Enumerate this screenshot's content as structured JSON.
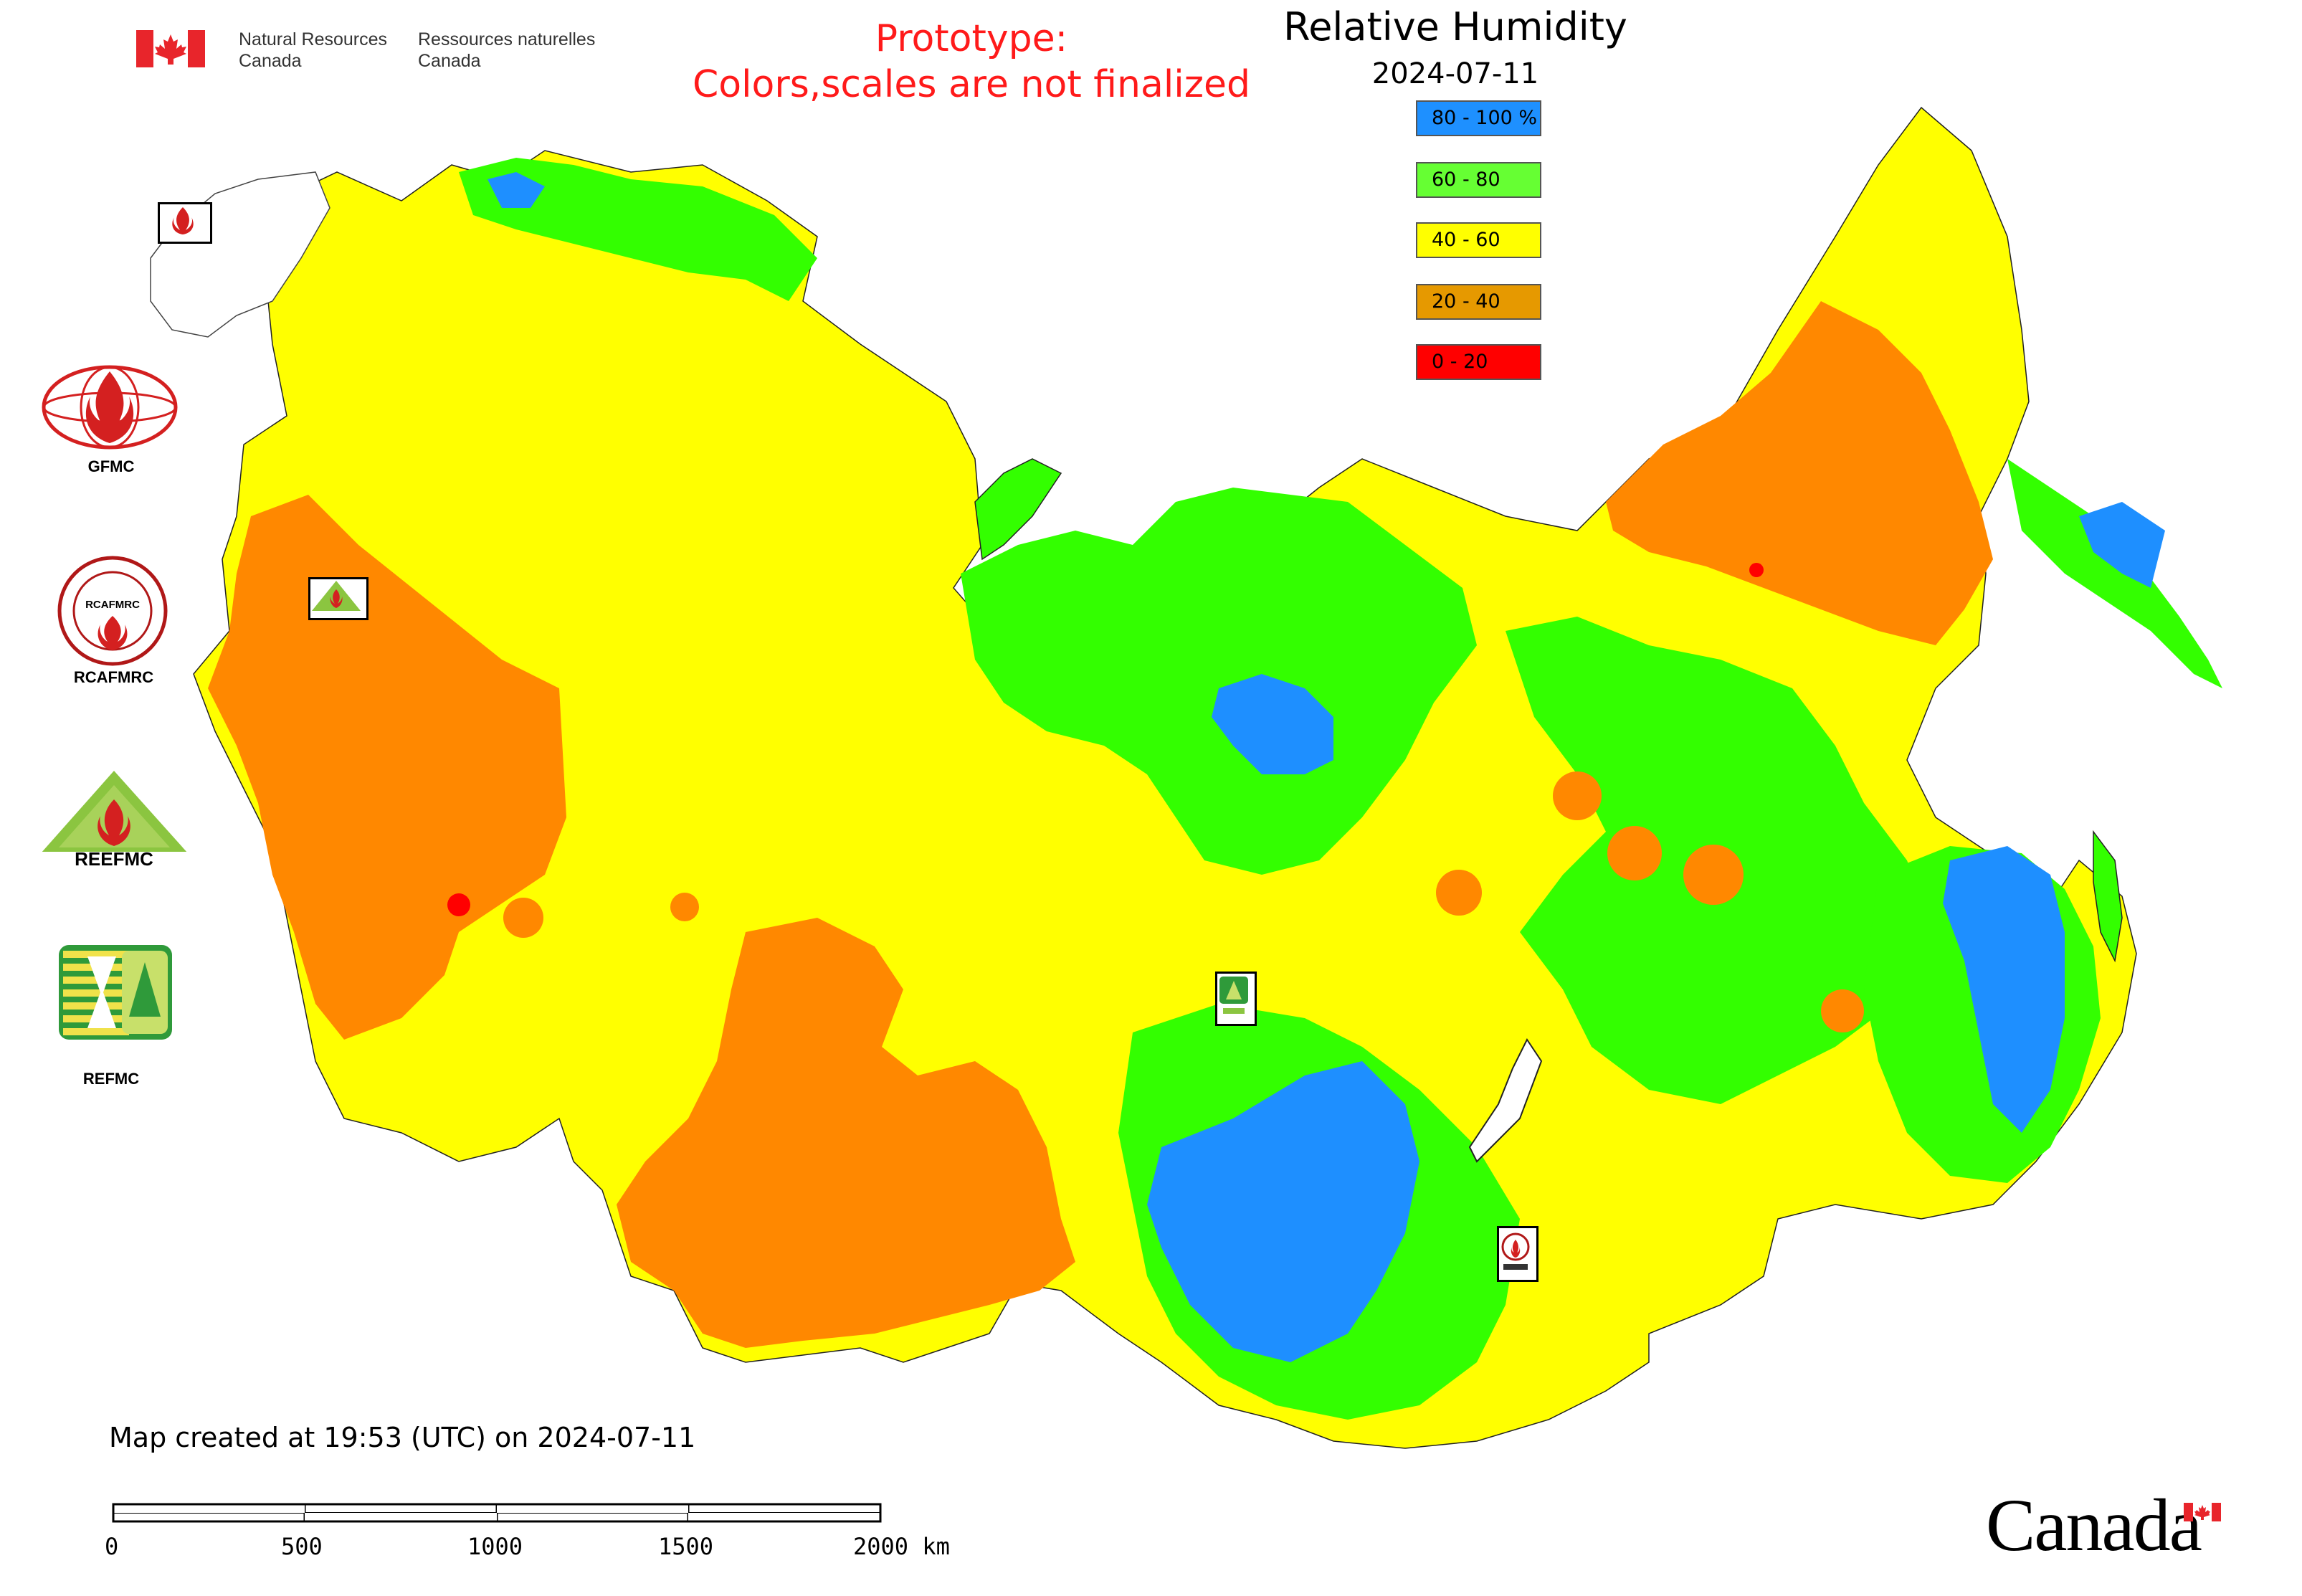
{
  "header": {
    "agency_en_line1": "Natural Resources",
    "agency_en_line2": "Canada",
    "agency_fr_line1": "Ressources naturelles",
    "agency_fr_line2": "Canada",
    "prototype_line1": "Prototype:",
    "prototype_line2": "Colors,scales are not finalized"
  },
  "map": {
    "title": "Relative Humidity",
    "date": "2024-07-11",
    "legend": [
      {
        "label": "80 - 100 %",
        "color": "#1e90ff"
      },
      {
        "label": "60 - 80",
        "color": "#66ff33"
      },
      {
        "label": "40 - 60",
        "color": "#ffff00"
      },
      {
        "label": "20 - 40",
        "color": "#e69900"
      },
      {
        "label": "0 - 20",
        "color": "#ff0000"
      }
    ],
    "fill_colors": {
      "blue": "#1e8fff",
      "green": "#33ff00",
      "yellow": "#ffff00",
      "orange": "#ff8800",
      "red": "#ff0000"
    }
  },
  "logos": [
    {
      "label": "GFMC",
      "icon": "gfmc-logo"
    },
    {
      "label": "RCAFMRC",
      "icon": "rcafmrc-logo"
    },
    {
      "label": "REEFMC",
      "icon": "reefmc-logo"
    },
    {
      "label": "REFMC",
      "icon": "refmc-logo"
    }
  ],
  "map_markers": [
    {
      "label": "GFMC",
      "icon": "gfmc-marker"
    },
    {
      "label": "REEFMC",
      "icon": "reefmc-marker"
    },
    {
      "label": "REFMC",
      "icon": "refmc-marker"
    },
    {
      "label": "RCAFMRC",
      "icon": "rcafmrc-marker"
    }
  ],
  "footer": {
    "created_text": "Map created at 19:53 (UTC) on 2024-07-11",
    "scale_labels": [
      "0",
      "500",
      "1000",
      "1500",
      "2000 km"
    ],
    "wordmark": "Canada"
  }
}
